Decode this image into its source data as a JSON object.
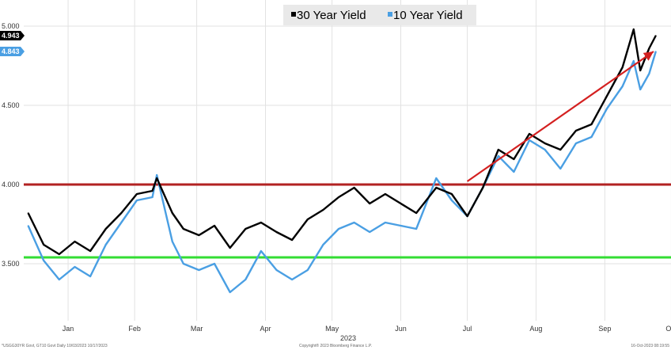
{
  "chart_data": {
    "type": "line",
    "title": "",
    "xlabel": "2023",
    "ylabel": "",
    "ylim": [
      3.2,
      5.05
    ],
    "y_ticks": [
      {
        "value": 3.5,
        "label": "3.500"
      },
      {
        "value": 4.0,
        "label": "4.000"
      },
      {
        "value": 4.5,
        "label": "4.500"
      },
      {
        "value": 5.0,
        "label": "5.000"
      }
    ],
    "x_ticks": [
      {
        "label": "Jan",
        "day": 8
      },
      {
        "label": "Feb",
        "day": 38
      },
      {
        "label": "Mar",
        "day": 66
      },
      {
        "label": "Apr",
        "day": 97
      },
      {
        "label": "May",
        "day": 127
      },
      {
        "label": "Jun",
        "day": 158
      },
      {
        "label": "Jul",
        "day": 188
      },
      {
        "label": "Aug",
        "day": 219
      },
      {
        "label": "Sep",
        "day": 250
      },
      {
        "label": "Oct",
        "day": 280
      }
    ],
    "x_range": [
      "2023-01-01",
      "2023-10-17"
    ],
    "grid": true,
    "legend_position": "top",
    "series": [
      {
        "name": "30 Year Yield",
        "color": "#000000",
        "last_label": "4.943",
        "x": [
          "2023-01-03",
          "2023-01-10",
          "2023-01-17",
          "2023-01-24",
          "2023-01-31",
          "2023-02-07",
          "2023-02-14",
          "2023-02-21",
          "2023-02-28",
          "2023-03-02",
          "2023-03-09",
          "2023-03-14",
          "2023-03-21",
          "2023-03-28",
          "2023-04-04",
          "2023-04-11",
          "2023-04-18",
          "2023-04-25",
          "2023-05-02",
          "2023-05-09",
          "2023-05-16",
          "2023-05-23",
          "2023-05-30",
          "2023-06-06",
          "2023-06-13",
          "2023-06-20",
          "2023-06-27",
          "2023-07-06",
          "2023-07-13",
          "2023-07-20",
          "2023-07-27",
          "2023-08-03",
          "2023-08-10",
          "2023-08-17",
          "2023-08-24",
          "2023-08-31",
          "2023-09-07",
          "2023-09-14",
          "2023-09-21",
          "2023-09-28",
          "2023-10-03",
          "2023-10-06",
          "2023-10-10",
          "2023-10-13"
        ],
        "values": [
          3.82,
          3.62,
          3.56,
          3.64,
          3.58,
          3.72,
          3.82,
          3.94,
          3.96,
          4.04,
          3.82,
          3.72,
          3.68,
          3.74,
          3.6,
          3.72,
          3.76,
          3.7,
          3.65,
          3.78,
          3.84,
          3.92,
          3.98,
          3.88,
          3.94,
          3.88,
          3.82,
          3.98,
          3.94,
          3.8,
          3.98,
          4.22,
          4.16,
          4.32,
          4.26,
          4.22,
          4.34,
          4.38,
          4.56,
          4.74,
          4.98,
          4.72,
          4.86,
          4.94
        ]
      },
      {
        "name": "10 Year Yield",
        "color": "#4a9fe3",
        "last_label": "4.843",
        "x": [
          "2023-01-03",
          "2023-01-10",
          "2023-01-17",
          "2023-01-24",
          "2023-01-31",
          "2023-02-07",
          "2023-02-14",
          "2023-02-21",
          "2023-02-28",
          "2023-03-02",
          "2023-03-09",
          "2023-03-14",
          "2023-03-21",
          "2023-03-28",
          "2023-04-04",
          "2023-04-11",
          "2023-04-18",
          "2023-04-25",
          "2023-05-02",
          "2023-05-09",
          "2023-05-16",
          "2023-05-23",
          "2023-05-30",
          "2023-06-06",
          "2023-06-13",
          "2023-06-20",
          "2023-06-27",
          "2023-07-06",
          "2023-07-13",
          "2023-07-20",
          "2023-07-27",
          "2023-08-03",
          "2023-08-10",
          "2023-08-17",
          "2023-08-24",
          "2023-08-31",
          "2023-09-07",
          "2023-09-14",
          "2023-09-21",
          "2023-09-28",
          "2023-10-03",
          "2023-10-06",
          "2023-10-10",
          "2023-10-13"
        ],
        "values": [
          3.74,
          3.52,
          3.4,
          3.48,
          3.42,
          3.62,
          3.76,
          3.9,
          3.92,
          4.06,
          3.64,
          3.5,
          3.46,
          3.5,
          3.32,
          3.4,
          3.58,
          3.46,
          3.4,
          3.46,
          3.62,
          3.72,
          3.76,
          3.7,
          3.76,
          3.74,
          3.72,
          4.04,
          3.9,
          3.8,
          3.98,
          4.18,
          4.08,
          4.28,
          4.22,
          4.1,
          4.26,
          4.3,
          4.48,
          4.62,
          4.78,
          4.6,
          4.7,
          4.84
        ]
      }
    ],
    "reference_lines": [
      {
        "name": "4% level",
        "value": 4.0,
        "color": "#b22222"
      },
      {
        "name": "support level",
        "value": 3.54,
        "color": "#33dd33"
      }
    ],
    "trend_arrow": {
      "color": "#d42020",
      "start": {
        "x": "2023-07-20",
        "y": 4.02
      },
      "end": {
        "x": "2023-10-12",
        "y": 4.84
      }
    }
  },
  "footer": {
    "left": "*USGG30YR Govt, GT10 Govt Daily 10/03/2023 10/17/2023",
    "center": "Copyright® 2023 Bloomberg Finance L.P.",
    "right": "16-Oct-2023 08:19:55"
  }
}
